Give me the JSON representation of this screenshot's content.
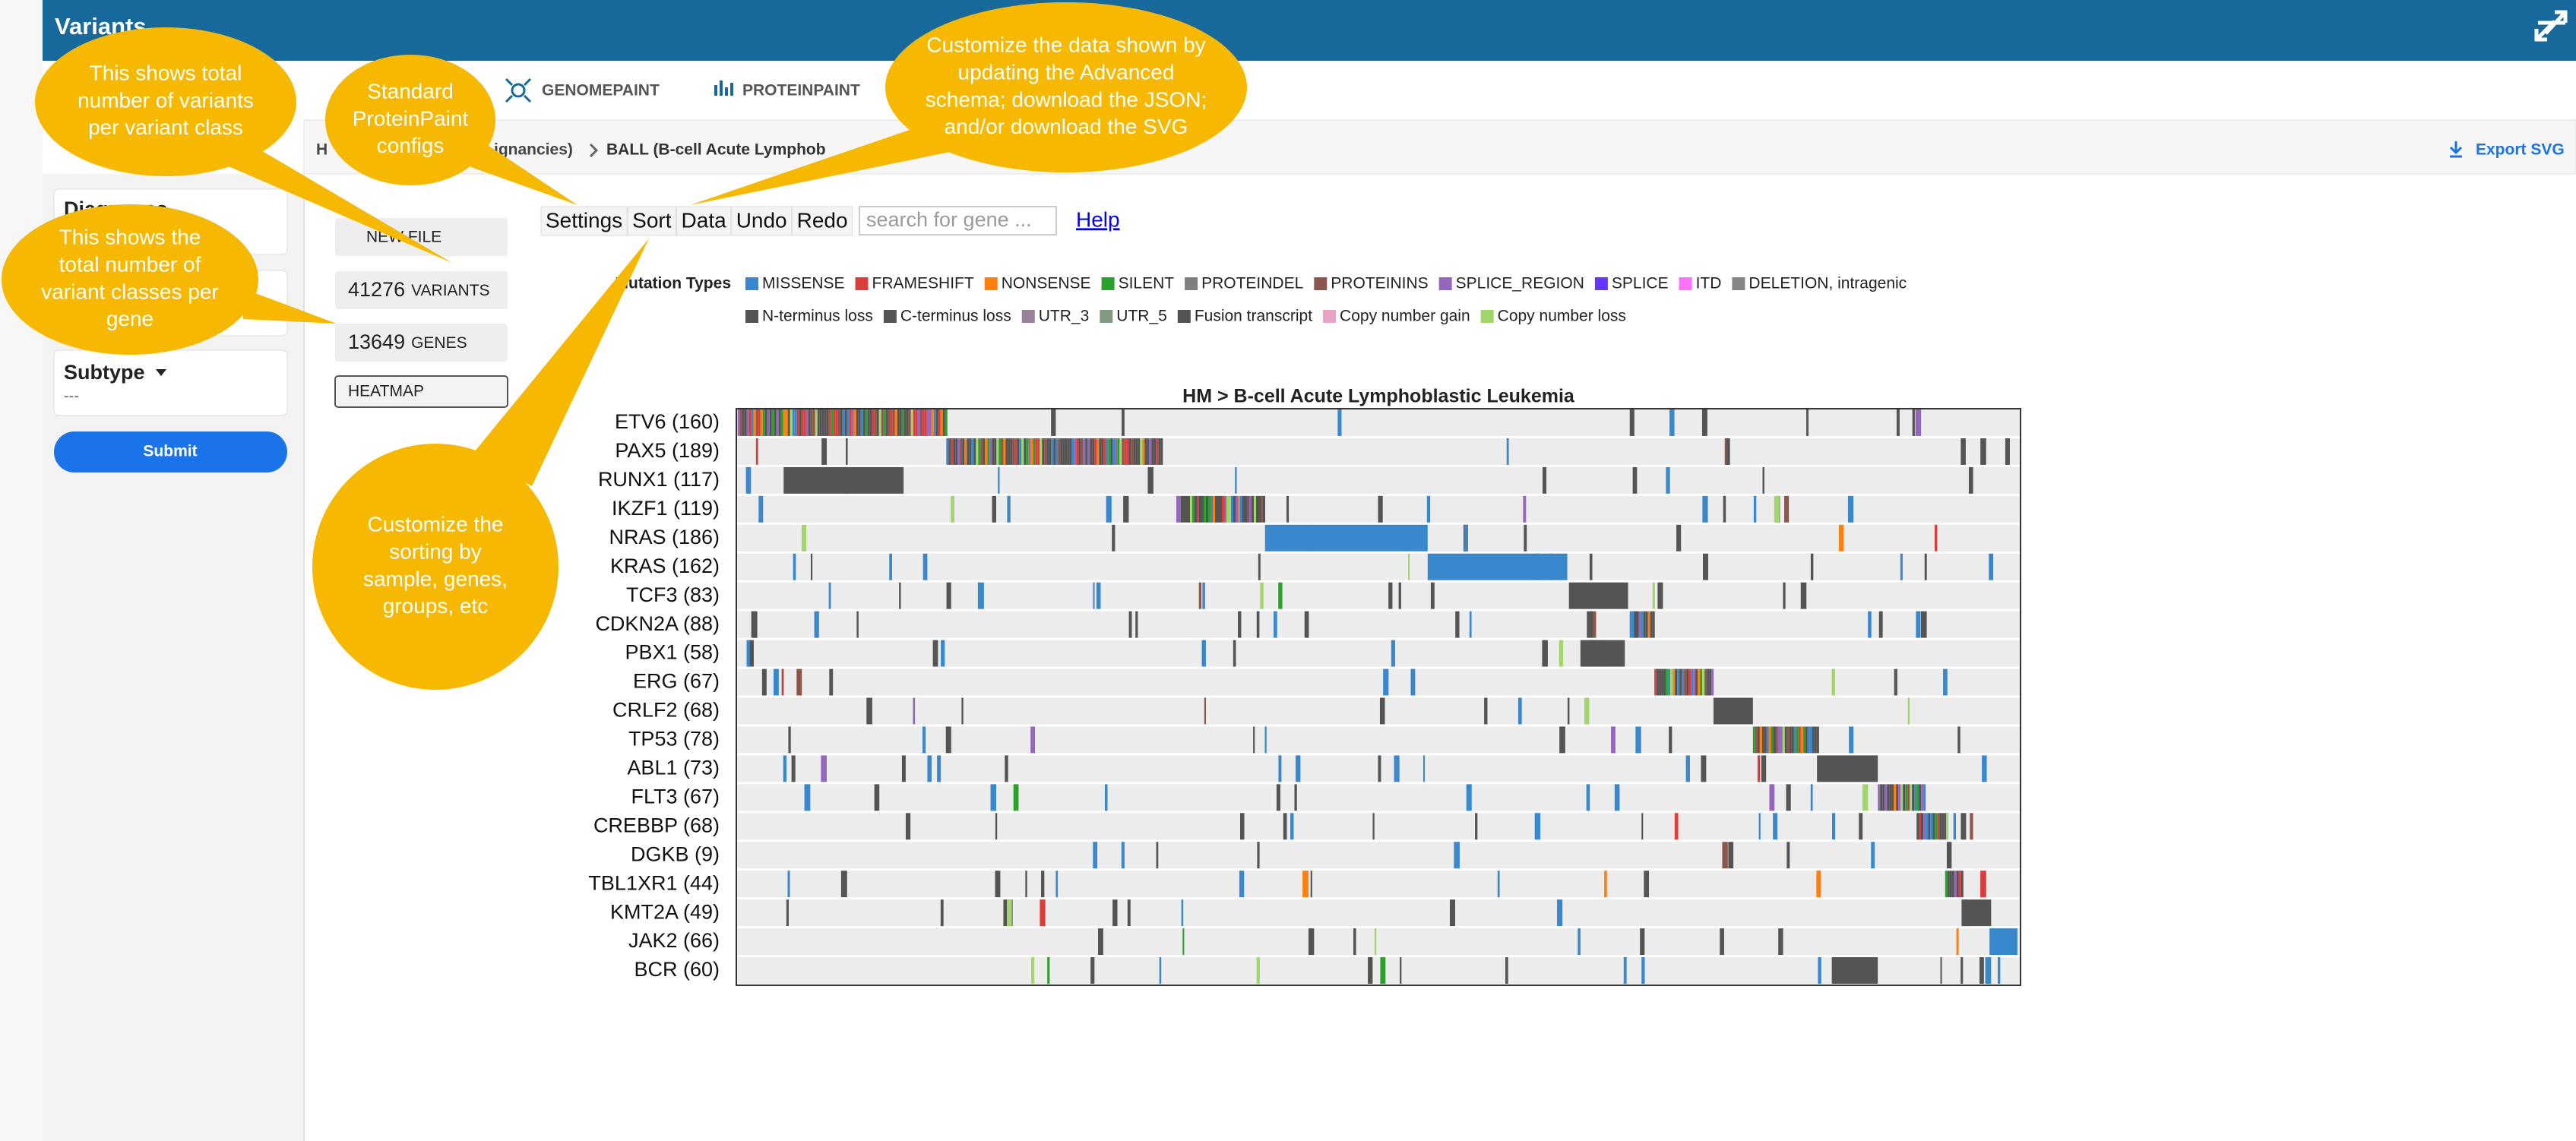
{
  "header": {
    "title": "Variants"
  },
  "tabs": [
    "GENOMEPAINT",
    "PROTEINPAINT"
  ],
  "breadcrumb": [
    "H",
    "ignancies)",
    "BALL (B-cell Acute Lymphob"
  ],
  "export": "Export SVG",
  "sidebar": {
    "diagnoses": "Diagnoses",
    "subtype": "Subtype",
    "subtype_value": "---",
    "submit": "Submit"
  },
  "actions": {
    "new_file": "NEW FILE",
    "stats": [
      {
        "value": 41276,
        "label": "VARIANTS"
      },
      {
        "value": 13649,
        "label": "GENES"
      }
    ],
    "heatmap": "HEATMAP"
  },
  "toolbar": {
    "buttons": [
      "Settings",
      "Sort",
      "Data",
      "Undo",
      "Redo"
    ],
    "search_placeholder": "search for gene ...",
    "help": "Help"
  },
  "legend": {
    "title": "Mutation Types",
    "items": [
      {
        "name": "MISSENSE",
        "color": "#3987cc"
      },
      {
        "name": "FRAMESHIFT",
        "color": "#db3d3d"
      },
      {
        "name": "NONSENSE",
        "color": "#ff7f0e"
      },
      {
        "name": "SILENT",
        "color": "#2ca02c"
      },
      {
        "name": "PROTEINDEL",
        "color": "#7f7f7f"
      },
      {
        "name": "PROTEININS",
        "color": "#8c564b"
      },
      {
        "name": "SPLICE_REGION",
        "color": "#9467bd"
      },
      {
        "name": "SPLICE",
        "color": "#6633ff"
      },
      {
        "name": "ITD",
        "color": "#ff70ff"
      },
      {
        "name": "DELETION, intragenic",
        "color": "#858585"
      },
      {
        "name": "N-terminus loss",
        "color": "#545454"
      },
      {
        "name": "C-terminus loss",
        "color": "#545454"
      },
      {
        "name": "UTR_3",
        "color": "#998199"
      },
      {
        "name": "UTR_5",
        "color": "#819981"
      },
      {
        "name": "Fusion transcript",
        "color": "#545454"
      },
      {
        "name": "Copy number gain",
        "color": "#e9a3c9"
      },
      {
        "name": "Copy number loss",
        "color": "#a1d76a"
      }
    ]
  },
  "heatmap": {
    "title": "HM > B-cell Acute Lymphoblastic Leukemia",
    "rows": [
      "ETV6 (160)",
      "PAX5 (189)",
      "RUNX1 (117)",
      "IKZF1 (119)",
      "NRAS (186)",
      "KRAS (162)",
      "TCF3 (83)",
      "CDKN2A (88)",
      "PBX1 (58)",
      "ERG (67)",
      "CRLF2 (68)",
      "TP53 (78)",
      "ABL1 (73)",
      "FLT3 (67)",
      "CREBBP (68)",
      "DGKB (9)",
      "TBL1XR1 (44)",
      "KMT2A (49)",
      "JAK2 (66)",
      "BCR (60)"
    ]
  },
  "callouts": [
    [
      "This shows total",
      "number of variants",
      "per variant class"
    ],
    [
      "Standard",
      "ProteinPaint",
      "configs"
    ],
    [
      "Customize the data shown by",
      "updating the Advanced",
      "schema; download the JSON;",
      "and/or download the SVG"
    ],
    [
      "This shows the",
      "total number of",
      "variant classes per",
      "gene"
    ],
    [
      "Customize the",
      "sorting by",
      "sample, genes,",
      "groups, etc"
    ]
  ]
}
